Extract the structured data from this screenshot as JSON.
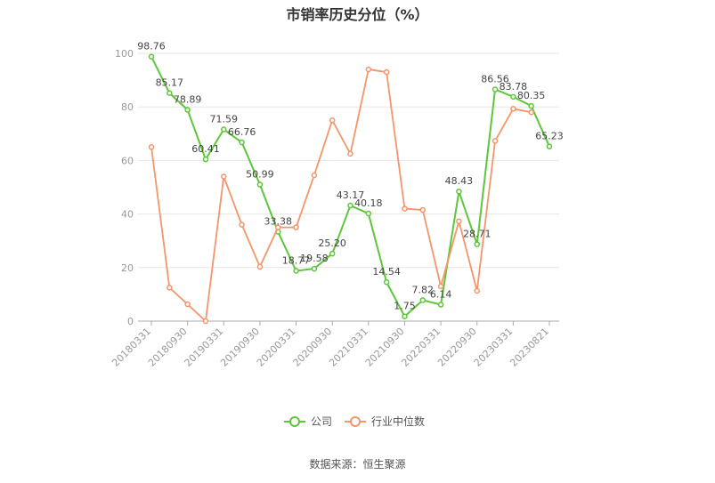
{
  "chart_data": {
    "type": "line",
    "title": "市销率历史分位（%）",
    "source_label": "数据来源：恒生聚源",
    "ylim": [
      0,
      100
    ],
    "yticks": [
      0,
      20,
      40,
      60,
      80,
      100
    ],
    "grid": true,
    "legend_position": "bottom",
    "x_tick_labels": [
      "20180331",
      "20180930",
      "20190331",
      "20190930",
      "20200331",
      "20200930",
      "20210331",
      "20210930",
      "20220331",
      "20220930",
      "20230331",
      "20230821"
    ],
    "series": [
      {
        "name": "公司",
        "color": "#5ec639",
        "values": [
          98.76,
          85.17,
          78.89,
          60.41,
          71.59,
          66.76,
          50.99,
          33.38,
          18.77,
          19.58,
          25.2,
          43.17,
          40.18,
          14.54,
          1.75,
          7.82,
          6.14,
          48.43,
          28.71,
          86.56,
          83.78,
          80.35,
          65.23
        ],
        "labels": [
          "98.76",
          "85.17",
          "78.89",
          "60.41",
          "71.59",
          "66.76",
          "50.99",
          "33.38",
          "18.77",
          "19.58",
          "25.20",
          "43.17",
          "40.18",
          "14.54",
          "1.75",
          "7.82",
          "6.14",
          "48.43",
          "28.71",
          "86.56",
          "83.78",
          "80.35",
          "65.23"
        ]
      },
      {
        "name": "行业中位数",
        "color": "#f4956a",
        "values": [
          65,
          12.5,
          6.3,
          0,
          54,
          36,
          20.3,
          35,
          35,
          54.5,
          75,
          62.5,
          94,
          93,
          42,
          41.5,
          13,
          37.3,
          11.3,
          67.3,
          79.3,
          78,
          null
        ]
      }
    ]
  }
}
